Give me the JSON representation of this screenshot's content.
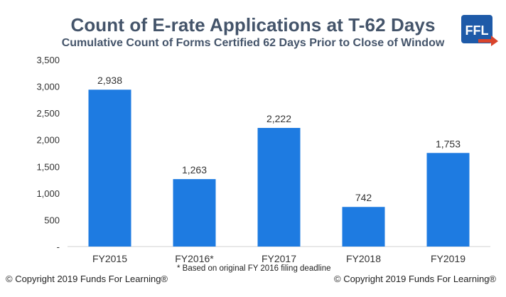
{
  "chart_data": {
    "type": "bar",
    "title": "Count of E-rate Applications at T-62 Days",
    "subtitle": "Cumulative Count of Forms Certified 62 Days Prior to Close of Window",
    "categories": [
      "FY2015",
      "FY2016*",
      "FY2017",
      "FY2018",
      "FY2019"
    ],
    "values": [
      2938,
      1263,
      2222,
      742,
      1753
    ],
    "value_labels": [
      "2,938",
      "1,263",
      "2,222",
      "742",
      "1,753"
    ],
    "ylim": [
      0,
      3500
    ],
    "yticks": [
      0,
      500,
      1000,
      1500,
      2000,
      2500,
      3000,
      3500
    ],
    "ytick_labels": [
      "-",
      "500",
      "1,000",
      "1,500",
      "2,000",
      "2,500",
      "3,000",
      "3,500"
    ],
    "bar_color": "#1E7BE1",
    "grid": false,
    "legend": "none"
  },
  "footnote": "* Based on original FY 2016 filing deadline",
  "copyright_left": "© Copyright 2019 Funds For Learning®",
  "copyright_right": "© Copyright 2019 Funds For Learning®",
  "logo": {
    "text": "FFL",
    "icon": "ffl-arrow-logo",
    "color": "#1E5AA8",
    "arrow_color": "#D9442C"
  }
}
